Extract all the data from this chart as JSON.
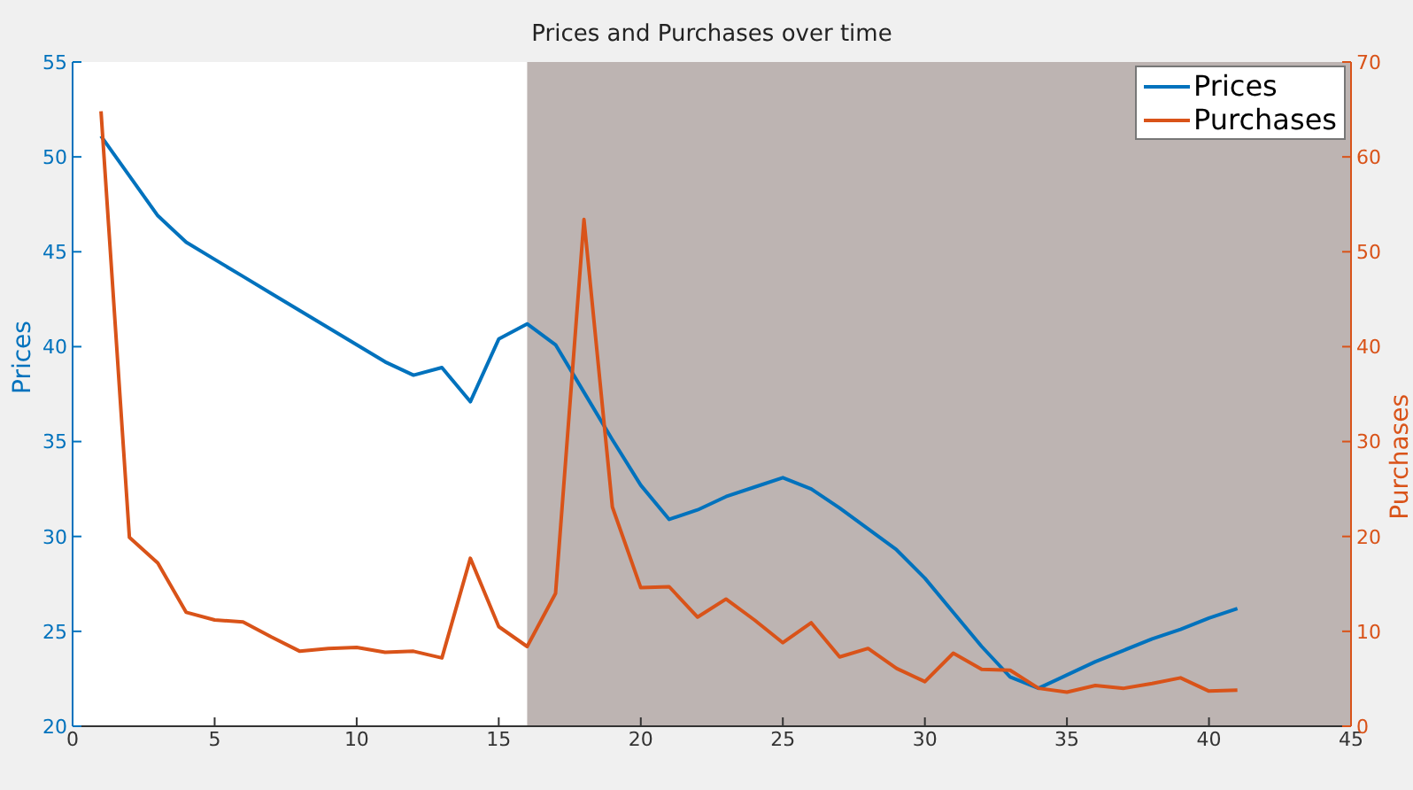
{
  "chart_data": {
    "type": "line",
    "title": "Prices and Purchases over time",
    "ylabel": "Prices",
    "y2label": "Purchases",
    "x": [
      1,
      2,
      3,
      4,
      5,
      6,
      7,
      8,
      9,
      10,
      11,
      12,
      13,
      14,
      15,
      16,
      17,
      18,
      19,
      20,
      21,
      22,
      23,
      24,
      25,
      26,
      27,
      28,
      29,
      30,
      31,
      32,
      33,
      34,
      35,
      36,
      37,
      38,
      39,
      40,
      41
    ],
    "series": [
      {
        "name": "Prices",
        "color": "#0072bd",
        "values": [
          51.1,
          49.0,
          46.9,
          45.5,
          44.6,
          43.7,
          42.8,
          41.9,
          41.0,
          40.1,
          39.2,
          38.5,
          38.9,
          37.1,
          40.4,
          41.2,
          40.1,
          37.6,
          35.1,
          32.7,
          30.9,
          31.4,
          32.1,
          32.6,
          33.1,
          32.5,
          31.5,
          30.4,
          29.3,
          27.8,
          26.0,
          24.2,
          22.6,
          22.0,
          22.7,
          23.4,
          24.0,
          24.6,
          25.1,
          25.7,
          26.2
        ]
      },
      {
        "name": "Purchases",
        "color": "#d95319",
        "axis": "y2",
        "values": [
          64.8,
          19.9,
          17.2,
          12.0,
          11.2,
          11.0,
          9.4,
          7.9,
          8.2,
          8.3,
          7.8,
          7.9,
          7.2,
          17.7,
          10.5,
          8.4,
          14.0,
          53.4,
          23.1,
          14.6,
          14.7,
          11.5,
          13.4,
          11.2,
          8.8,
          10.9,
          7.3,
          8.2,
          6.1,
          4.7,
          7.7,
          6.0,
          5.9,
          4.0,
          3.6,
          4.3,
          4.0,
          4.5,
          5.1,
          3.7,
          3.8
        ]
      }
    ],
    "xlim": [
      0,
      45
    ],
    "xticks": [
      0,
      5,
      10,
      15,
      20,
      25,
      30,
      35,
      40,
      45
    ],
    "ylim": [
      20,
      55
    ],
    "yticks": [
      20,
      25,
      30,
      35,
      40,
      45,
      50,
      55
    ],
    "y2lim": [
      0,
      70
    ],
    "y2ticks": [
      0,
      10,
      20,
      30,
      40,
      50,
      60,
      70
    ],
    "bands": [
      {
        "axis": "x",
        "from": 16,
        "to": 45,
        "color": "#bdb4b2"
      }
    ],
    "legend": "top right",
    "grid": false,
    "marker": "none",
    "line_style": "solid"
  }
}
